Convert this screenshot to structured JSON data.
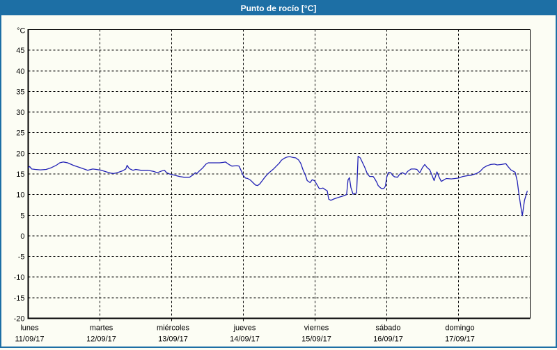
{
  "window": {
    "title": "Punto de rocío [°C]"
  },
  "colors": {
    "titlebar_bg": "#1d6fa5",
    "window_border": "#1d6fa5",
    "page_bg": "#fcfdf4",
    "series_line": "#2121b5",
    "grid": "#000000",
    "axis": "#000000",
    "text": "#000000"
  },
  "chart_data": {
    "type": "line",
    "title": "Punto de rocío [°C]",
    "xlabel": "",
    "ylabel": "°C",
    "ylim": [
      -20,
      50
    ],
    "yticks": [
      -20,
      -15,
      -10,
      -5,
      0,
      5,
      10,
      15,
      20,
      25,
      30,
      35,
      40,
      45
    ],
    "grid": true,
    "legend_position": "none",
    "x_axis_days": [
      {
        "name": "lunes",
        "date": "11/09/17"
      },
      {
        "name": "martes",
        "date": "12/09/17"
      },
      {
        "name": "miércoles",
        "date": "13/09/17"
      },
      {
        "name": "jueves",
        "date": "14/09/17"
      },
      {
        "name": "viernes",
        "date": "15/09/17"
      },
      {
        "name": "sábado",
        "date": "16/09/17"
      },
      {
        "name": "domingo",
        "date": "17/09/17"
      }
    ],
    "series": [
      {
        "name": "Punto de rocío",
        "color": "#2121b5",
        "x_unit": "days_from_monday_start",
        "points": [
          [
            0.0,
            16.5
          ],
          [
            0.02,
            16.8
          ],
          [
            0.05,
            16.2
          ],
          [
            0.1,
            16.1
          ],
          [
            0.17,
            16.0
          ],
          [
            0.25,
            16.1
          ],
          [
            0.32,
            16.5
          ],
          [
            0.39,
            17.1
          ],
          [
            0.44,
            17.7
          ],
          [
            0.49,
            17.9
          ],
          [
            0.55,
            17.7
          ],
          [
            0.63,
            17.1
          ],
          [
            0.73,
            16.5
          ],
          [
            0.83,
            15.9
          ],
          [
            0.9,
            16.2
          ],
          [
            0.95,
            16.1
          ],
          [
            1.02,
            15.9
          ],
          [
            1.09,
            15.5
          ],
          [
            1.15,
            15.2
          ],
          [
            1.19,
            15.1
          ],
          [
            1.24,
            15.3
          ],
          [
            1.31,
            15.7
          ],
          [
            1.36,
            16.2
          ],
          [
            1.38,
            17.1
          ],
          [
            1.41,
            16.3
          ],
          [
            1.46,
            15.9
          ],
          [
            1.5,
            16.1
          ],
          [
            1.57,
            15.9
          ],
          [
            1.67,
            15.9
          ],
          [
            1.75,
            15.6
          ],
          [
            1.8,
            15.3
          ],
          [
            1.86,
            15.7
          ],
          [
            1.9,
            15.9
          ],
          [
            1.93,
            15.3
          ],
          [
            1.97,
            15.0
          ],
          [
            2.04,
            14.7
          ],
          [
            2.11,
            14.4
          ],
          [
            2.17,
            14.2
          ],
          [
            2.25,
            14.2
          ],
          [
            2.3,
            14.8
          ],
          [
            2.33,
            15.3
          ],
          [
            2.35,
            15.1
          ],
          [
            2.38,
            15.6
          ],
          [
            2.43,
            16.4
          ],
          [
            2.48,
            17.4
          ],
          [
            2.51,
            17.7
          ],
          [
            2.57,
            17.7
          ],
          [
            2.67,
            17.7
          ],
          [
            2.72,
            17.8
          ],
          [
            2.75,
            17.9
          ],
          [
            2.8,
            17.3
          ],
          [
            2.84,
            16.9
          ],
          [
            2.91,
            17.0
          ],
          [
            2.94,
            16.9
          ],
          [
            2.97,
            15.8
          ],
          [
            3.0,
            14.6
          ],
          [
            3.03,
            14.0
          ],
          [
            3.06,
            13.9
          ],
          [
            3.1,
            13.5
          ],
          [
            3.14,
            12.8
          ],
          [
            3.17,
            12.3
          ],
          [
            3.2,
            12.2
          ],
          [
            3.23,
            12.6
          ],
          [
            3.26,
            13.3
          ],
          [
            3.3,
            14.2
          ],
          [
            3.34,
            15.0
          ],
          [
            3.38,
            15.6
          ],
          [
            3.42,
            16.2
          ],
          [
            3.46,
            16.9
          ],
          [
            3.5,
            17.6
          ],
          [
            3.53,
            18.3
          ],
          [
            3.57,
            18.8
          ],
          [
            3.61,
            19.1
          ],
          [
            3.65,
            19.2
          ],
          [
            3.69,
            19.0
          ],
          [
            3.73,
            18.9
          ],
          [
            3.77,
            18.4
          ],
          [
            3.8,
            17.6
          ],
          [
            3.83,
            16.1
          ],
          [
            3.87,
            14.5
          ],
          [
            3.89,
            13.4
          ],
          [
            3.93,
            12.9
          ],
          [
            3.96,
            13.6
          ],
          [
            3.99,
            13.4
          ],
          [
            4.01,
            12.9
          ],
          [
            4.06,
            11.4
          ],
          [
            4.11,
            11.6
          ],
          [
            4.15,
            11.1
          ],
          [
            4.17,
            10.9
          ],
          [
            4.19,
            8.9
          ],
          [
            4.22,
            8.6
          ],
          [
            4.27,
            9.0
          ],
          [
            4.34,
            9.4
          ],
          [
            4.4,
            9.7
          ],
          [
            4.44,
            10.0
          ],
          [
            4.46,
            13.6
          ],
          [
            4.48,
            14.1
          ],
          [
            4.5,
            11.7
          ],
          [
            4.53,
            10.1
          ],
          [
            4.56,
            10.3
          ],
          [
            4.58,
            10.4
          ],
          [
            4.6,
            19.3
          ],
          [
            4.63,
            18.9
          ],
          [
            4.66,
            17.8
          ],
          [
            4.69,
            16.7
          ],
          [
            4.73,
            15.0
          ],
          [
            4.76,
            14.4
          ],
          [
            4.81,
            14.4
          ],
          [
            4.83,
            13.9
          ],
          [
            4.86,
            13.0
          ],
          [
            4.88,
            12.2
          ],
          [
            4.91,
            11.7
          ],
          [
            4.93,
            11.4
          ],
          [
            4.96,
            11.5
          ],
          [
            4.98,
            12.0
          ],
          [
            5.0,
            14.2
          ],
          [
            5.02,
            15.3
          ],
          [
            5.04,
            15.4
          ],
          [
            5.06,
            15.2
          ],
          [
            5.08,
            14.7
          ],
          [
            5.11,
            14.3
          ],
          [
            5.15,
            14.2
          ],
          [
            5.17,
            14.7
          ],
          [
            5.19,
            15.1
          ],
          [
            5.22,
            15.3
          ],
          [
            5.26,
            14.9
          ],
          [
            5.29,
            15.6
          ],
          [
            5.34,
            16.2
          ],
          [
            5.39,
            16.2
          ],
          [
            5.42,
            16.1
          ],
          [
            5.46,
            15.3
          ],
          [
            5.5,
            16.6
          ],
          [
            5.53,
            17.3
          ],
          [
            5.56,
            16.6
          ],
          [
            5.6,
            16.0
          ],
          [
            5.63,
            14.7
          ],
          [
            5.66,
            13.4
          ],
          [
            5.7,
            15.5
          ],
          [
            5.73,
            14.2
          ],
          [
            5.76,
            13.2
          ],
          [
            5.8,
            13.6
          ],
          [
            5.83,
            13.9
          ],
          [
            5.9,
            13.8
          ],
          [
            5.95,
            13.9
          ],
          [
            6.0,
            14.0
          ],
          [
            6.06,
            14.4
          ],
          [
            6.13,
            14.6
          ],
          [
            6.18,
            14.7
          ],
          [
            6.25,
            15.1
          ],
          [
            6.3,
            15.6
          ],
          [
            6.35,
            16.5
          ],
          [
            6.4,
            17.0
          ],
          [
            6.45,
            17.3
          ],
          [
            6.5,
            17.4
          ],
          [
            6.54,
            17.2
          ],
          [
            6.6,
            17.3
          ],
          [
            6.66,
            17.5
          ],
          [
            6.69,
            16.8
          ],
          [
            6.73,
            16.0
          ],
          [
            6.76,
            15.7
          ],
          [
            6.79,
            15.4
          ],
          [
            6.82,
            13.2
          ],
          [
            6.84,
            10.5
          ],
          [
            6.87,
            7.0
          ],
          [
            6.89,
            4.9
          ],
          [
            6.92,
            8.6
          ],
          [
            6.96,
            10.9
          ]
        ]
      }
    ]
  }
}
